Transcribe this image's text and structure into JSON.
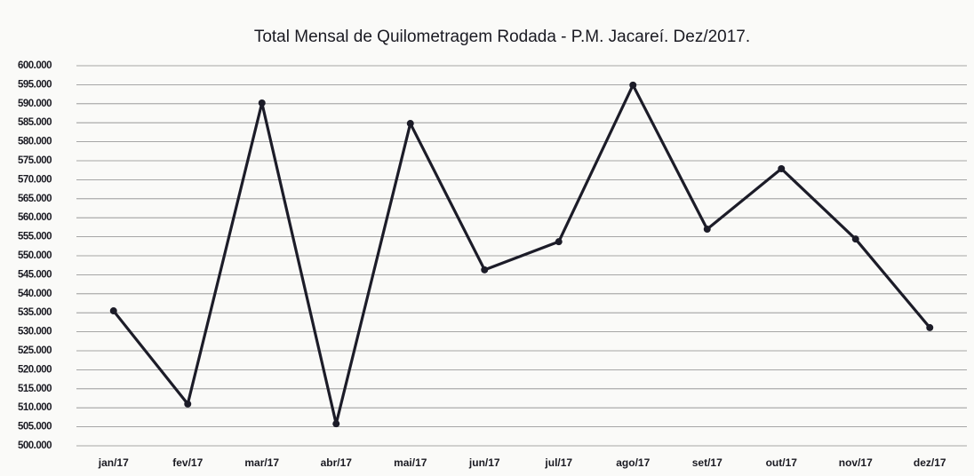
{
  "chart_data": {
    "type": "line",
    "title": "Total Mensal de Quilometragem Rodada -  P.M. Jacareí.  Dez/2017.",
    "categories": [
      "jan/17",
      "fev/17",
      "mar/17",
      "abr/17",
      "mai/17",
      "jun/17",
      "jul/17",
      "ago/17",
      "set/17",
      "out/17",
      "nov/17",
      "dez/17"
    ],
    "values": [
      535500,
      511000,
      590200,
      505800,
      584800,
      546300,
      553700,
      594900,
      557000,
      572900,
      554400,
      531100
    ],
    "color": "#1c1c28",
    "ylim": [
      500000,
      600000
    ],
    "yticks": [
      {
        "value": 500000,
        "label": "500.000"
      },
      {
        "value": 505000,
        "label": "505.000"
      },
      {
        "value": 510000,
        "label": "510.000"
      },
      {
        "value": 515000,
        "label": "515.000"
      },
      {
        "value": 520000,
        "label": "520.000"
      },
      {
        "value": 525000,
        "label": "525.000"
      },
      {
        "value": 530000,
        "label": "530.000"
      },
      {
        "value": 535000,
        "label": "535.000"
      },
      {
        "value": 540000,
        "label": "540.000"
      },
      {
        "value": 545000,
        "label": "545.000"
      },
      {
        "value": 550000,
        "label": "550.000"
      },
      {
        "value": 555000,
        "label": "555.000"
      },
      {
        "value": 560000,
        "label": "560.000"
      },
      {
        "value": 565000,
        "label": "565.000"
      },
      {
        "value": 570000,
        "label": "570.000"
      },
      {
        "value": 575000,
        "label": "575.000"
      },
      {
        "value": 580000,
        "label": "580.000"
      },
      {
        "value": 585000,
        "label": "585.000"
      },
      {
        "value": 590000,
        "label": "590.000"
      },
      {
        "value": 595000,
        "label": "595.000"
      },
      {
        "value": 600000,
        "label": "600.000"
      }
    ],
    "grid": true
  }
}
